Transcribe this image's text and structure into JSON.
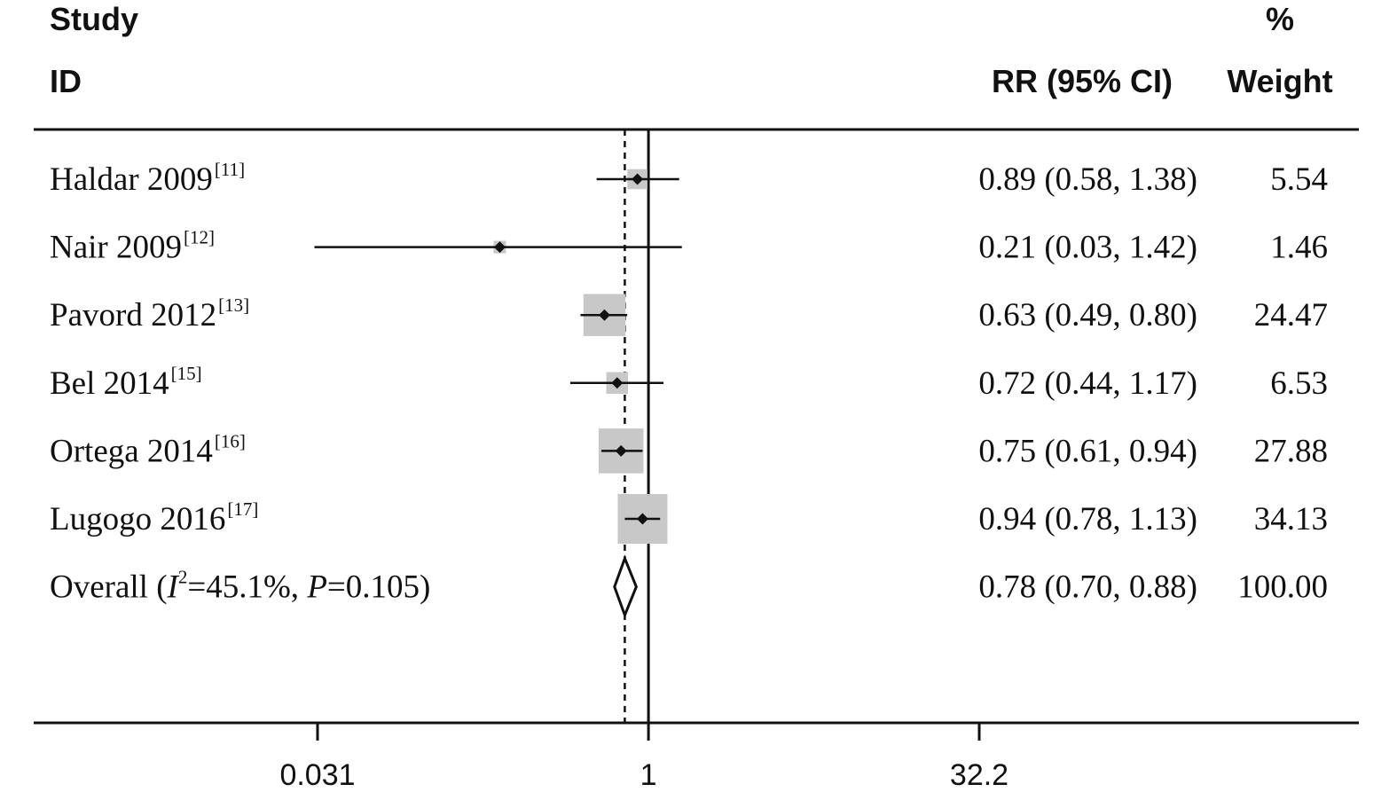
{
  "chart_data": {
    "type": "forest",
    "header": {
      "col1_line1": "Study",
      "col1_line2": "ID",
      "col2": "RR (95% CI)",
      "col3_line1": "%",
      "col3_line2": "Weight"
    },
    "log_scale": true,
    "xlim": [
      0.031,
      32.2
    ],
    "xticks": [
      {
        "value": 0.031,
        "label": "0.031"
      },
      {
        "value": 1,
        "label": "1"
      },
      {
        "value": 32.2,
        "label": "32.2"
      }
    ],
    "null_line": 1,
    "pooled_line": 0.78,
    "studies": [
      {
        "name": "Haldar 2009",
        "ref": "[11]",
        "rr": 0.89,
        "lo": 0.58,
        "hi": 1.38,
        "ci_text": "0.89 (0.58, 1.38)",
        "weight": 5.54,
        "weight_text": "5.54"
      },
      {
        "name": "Nair 2009",
        "ref": "[12]",
        "rr": 0.21,
        "lo": 0.03,
        "hi": 1.42,
        "ci_text": "0.21 (0.03, 1.42)",
        "weight": 1.46,
        "weight_text": "1.46"
      },
      {
        "name": "Pavord 2012",
        "ref": "[13]",
        "rr": 0.63,
        "lo": 0.49,
        "hi": 0.8,
        "ci_text": "0.63 (0.49, 0.80)",
        "weight": 24.47,
        "weight_text": "24.47"
      },
      {
        "name": "Bel 2014",
        "ref": "[15]",
        "rr": 0.72,
        "lo": 0.44,
        "hi": 1.17,
        "ci_text": "0.72 (0.44, 1.17)",
        "weight": 6.53,
        "weight_text": "6.53"
      },
      {
        "name": "Ortega 2014",
        "ref": "[16]",
        "rr": 0.75,
        "lo": 0.61,
        "hi": 0.94,
        "ci_text": "0.75 (0.61, 0.94)",
        "weight": 27.88,
        "weight_text": "27.88"
      },
      {
        "name": "Lugogo 2016",
        "ref": "[17]",
        "rr": 0.94,
        "lo": 0.78,
        "hi": 1.13,
        "ci_text": "0.94 (0.78, 1.13)",
        "weight": 34.13,
        "weight_text": "34.13"
      }
    ],
    "overall": {
      "label_prefix": "Overall  (",
      "i_symbol": "I",
      "i_sup": "2",
      "i_value": "=45.1%, ",
      "p_symbol": "P",
      "p_value": "=0.105)",
      "rr": 0.78,
      "lo": 0.7,
      "hi": 0.88,
      "ci_text": "0.78 (0.70, 0.88)",
      "weight_text": "100.00"
    },
    "colors": {
      "box": "#c8c8c8",
      "line": "#111111"
    }
  }
}
